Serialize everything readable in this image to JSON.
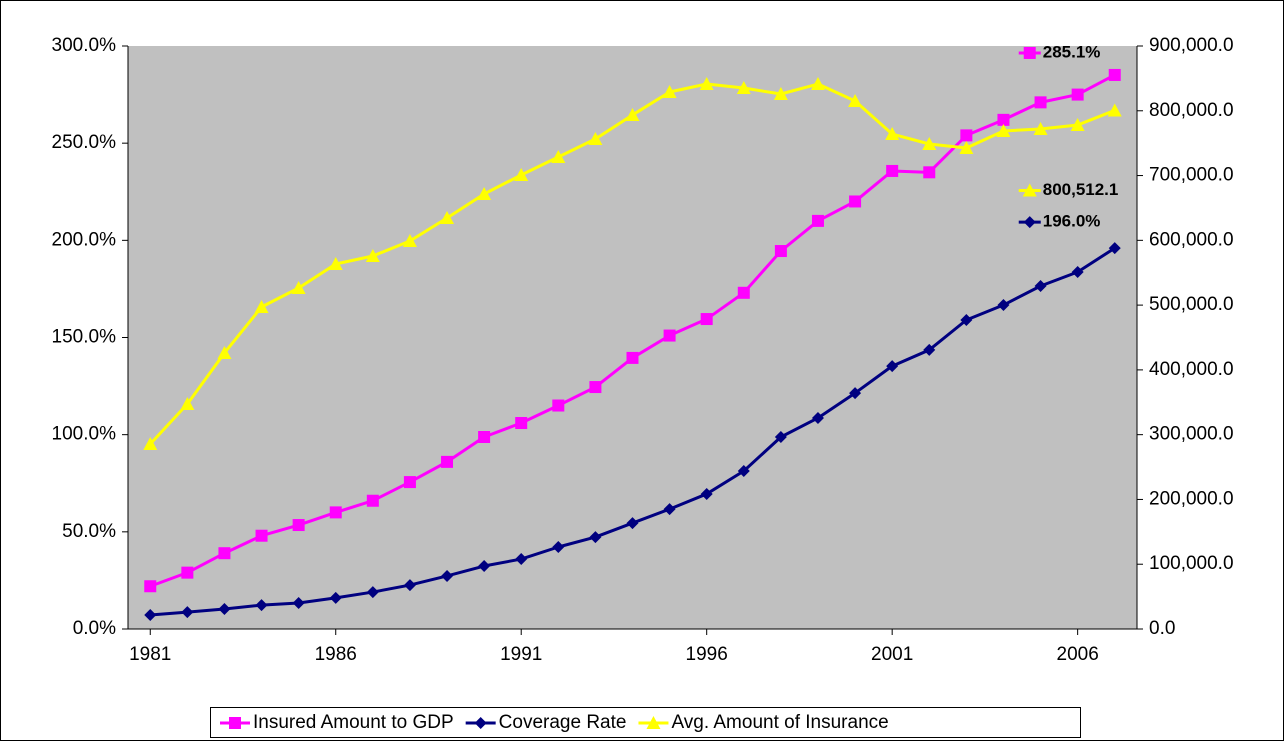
{
  "chart_data": {
    "type": "line",
    "x": [
      1981,
      1982,
      1983,
      1984,
      1985,
      1986,
      1987,
      1988,
      1989,
      1990,
      1991,
      1992,
      1993,
      1994,
      1995,
      1996,
      1997,
      1998,
      1999,
      2000,
      2001,
      2002,
      2003,
      2004,
      2005,
      2006,
      2007
    ],
    "xlim": [
      1980.4,
      2007.6
    ],
    "xticks": [
      1981,
      1986,
      1991,
      1996,
      2001,
      2006
    ],
    "ylim": [
      0,
      300
    ],
    "yticks": [
      {
        "value": 0,
        "label": "0.0%"
      },
      {
        "value": 50,
        "label": "50.0%"
      },
      {
        "value": 100,
        "label": "100.0%"
      },
      {
        "value": 150,
        "label": "150.0%"
      },
      {
        "value": 200,
        "label": "200.0%"
      },
      {
        "value": 250,
        "label": "250.0%"
      },
      {
        "value": 300,
        "label": "300.0%"
      }
    ],
    "y2lim": [
      0,
      900000
    ],
    "y2ticks": [
      {
        "value": 0,
        "label": "0.0"
      },
      {
        "value": 100000,
        "label": "100,000.0"
      },
      {
        "value": 200000,
        "label": "200,000.0"
      },
      {
        "value": 300000,
        "label": "300,000.0"
      },
      {
        "value": 400000,
        "label": "400,000.0"
      },
      {
        "value": 500000,
        "label": "500,000.0"
      },
      {
        "value": 600000,
        "label": "600,000.0"
      },
      {
        "value": 700000,
        "label": "700,000.0"
      },
      {
        "value": 800000,
        "label": "800,000.0"
      },
      {
        "value": 900000,
        "label": "900,000.0"
      }
    ],
    "grid": false,
    "legend": "bottom",
    "series": [
      {
        "name": "Insured Amount to GDP",
        "color": "#ff00ff",
        "marker": "square",
        "values": [
          22,
          29,
          39,
          48,
          53.5,
          60,
          66,
          75.6,
          86,
          98.8,
          106,
          115,
          124.5,
          139.5,
          151,
          159.5,
          173,
          194.5,
          210,
          220,
          235.7,
          235,
          254,
          262,
          271,
          275,
          285.1
        ],
        "value_labels": [
          null,
          null,
          null,
          null,
          null,
          null,
          null,
          null,
          null,
          null,
          null,
          null,
          null,
          null,
          null,
          null,
          null,
          null,
          null,
          null,
          null,
          null,
          null,
          null,
          null,
          null,
          "285.1%"
        ]
      },
      {
        "name": "Coverage Rate",
        "color": "#000080",
        "marker": "diamond",
        "values": [
          7.2,
          8.7,
          10.3,
          12.3,
          13.4,
          16,
          19,
          22.6,
          27.3,
          32.4,
          36,
          42.2,
          47.3,
          54.5,
          61.7,
          69.5,
          81.3,
          98.8,
          108.6,
          121.4,
          135.3,
          143.6,
          159,
          166.7,
          176.5,
          183.7,
          196.0
        ],
        "value_labels": [
          null,
          null,
          null,
          null,
          null,
          null,
          null,
          null,
          null,
          null,
          null,
          null,
          null,
          null,
          null,
          null,
          null,
          null,
          null,
          null,
          null,
          null,
          null,
          null,
          null,
          null,
          "196.0%"
        ]
      },
      {
        "name": "Avg. Amount of Insurance",
        "color": "#ffff00",
        "marker": "triangle",
        "axis": "y2",
        "values": [
          285600,
          347300,
          426100,
          497100,
          526400,
          563500,
          575800,
          599000,
          634500,
          671500,
          700900,
          728600,
          756400,
          793500,
          829000,
          841300,
          835100,
          825900,
          841300,
          815100,
          764100,
          748700,
          742500,
          768800,
          771900,
          778000,
          800512.1
        ],
        "value_labels": [
          null,
          null,
          null,
          null,
          null,
          null,
          null,
          null,
          null,
          null,
          null,
          null,
          null,
          null,
          null,
          null,
          null,
          null,
          null,
          null,
          null,
          null,
          null,
          null,
          null,
          null,
          "800,512.1"
        ]
      }
    ]
  }
}
